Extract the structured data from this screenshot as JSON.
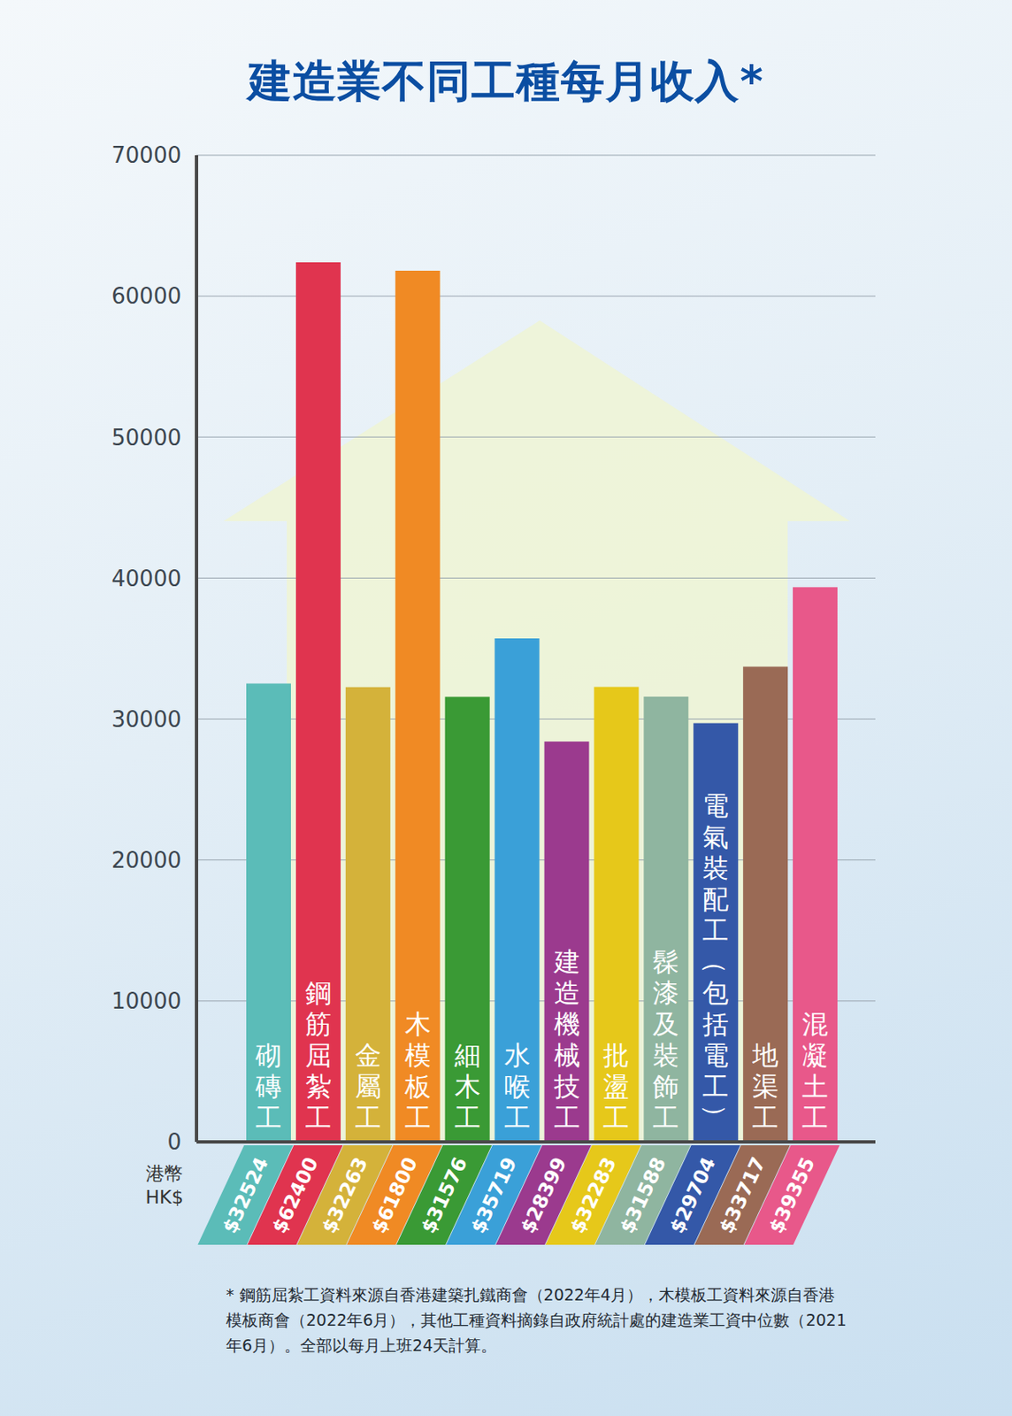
{
  "chart_data": {
    "type": "bar",
    "title": "建造業不同工種每月收入*",
    "categories": [
      "砌磚工",
      "鋼筋屈紮工",
      "金屬工",
      "木模板工",
      "細木工",
      "水喉工",
      "建造機械技工",
      "批盪工",
      "髹漆及裝飾工",
      "電氣裝配工（包括電工）",
      "地渠工",
      "混凝土工"
    ],
    "values": [
      32524,
      62400,
      32263,
      61800,
      31576,
      35719,
      28399,
      32283,
      31588,
      29704,
      33717,
      39355
    ],
    "value_labels": [
      "$32524",
      "$62400",
      "$32263",
      "$61800",
      "$31576",
      "$35719",
      "$28399",
      "$32283",
      "$31588",
      "$29704",
      "$33717",
      "$39355"
    ],
    "colors": [
      "#5bbcb8",
      "#e0344f",
      "#d4b23a",
      "#f08a24",
      "#3a9a35",
      "#3aa0d8",
      "#9b3a8e",
      "#e6c81a",
      "#8fb5a0",
      "#3458a8",
      "#9a6a55",
      "#e8588a"
    ],
    "ylim": [
      0,
      70000
    ],
    "yticks": [
      0,
      10000,
      20000,
      30000,
      40000,
      50000,
      60000,
      70000
    ],
    "grid": true,
    "data_labels": true,
    "unit_label": "港幣 HK$",
    "note": "* 鋼筋屈紮工資料來源自香港建築扎鐵商會（2022年4月），木模板工資料來源自香港模板商會（2022年6月），其他工種資料摘錄自政府統計處的建造業工資中位數（2021年6月）。全部以每月上班24天計算。"
  }
}
